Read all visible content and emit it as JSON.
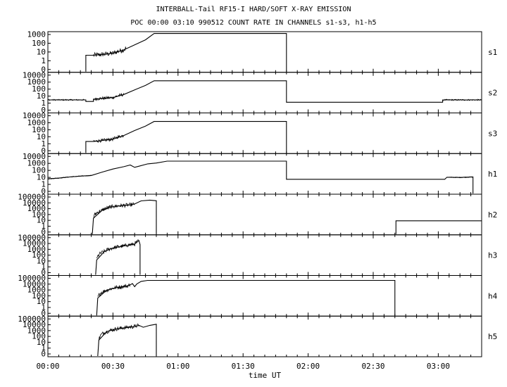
{
  "header": {
    "title": "INTERBALL-Tail RF15-I HARD/SOFT X-RAY EMISSION",
    "subtitle": "POC 00:00 03:10 990512  COUNT RATE IN CHANNELS s1-s3, h1-h5"
  },
  "chart_data": {
    "type": "line",
    "title": "INTERBALL-Tail RF15-I HARD/SOFT X-RAY EMISSION",
    "subtitle": "POC 00:00 03:10 990512  COUNT RATE IN CHANNELS s1-s3, h1-h5",
    "xlabel": "time UT",
    "x_unit": "minutes",
    "xlim": [
      0,
      200
    ],
    "x_ticks": [
      {
        "value": 0,
        "label": "00:00"
      },
      {
        "value": 30,
        "label": "00:30"
      },
      {
        "value": 60,
        "label": "01:00"
      },
      {
        "value": 90,
        "label": "01:30"
      },
      {
        "value": 120,
        "label": "02:00"
      },
      {
        "value": 150,
        "label": "02:30"
      },
      {
        "value": 180,
        "label": "03:00"
      }
    ],
    "y_scale": "log",
    "grid": false,
    "legend": "none",
    "series": [
      {
        "name": "s1",
        "ylim": [
          0.1,
          1000
        ],
        "ytick_labels": [
          "1000",
          "100",
          "10",
          "1",
          "0"
        ],
        "segments": [
          {
            "points": [
              [
                17.5,
                0.1
              ],
              [
                17.5,
                5
              ],
              [
                21,
                5
              ],
              [
                25,
                6
              ],
              [
                30,
                8
              ],
              [
                35,
                18
              ],
              [
                40,
                60
              ],
              [
                45,
                200
              ],
              [
                49,
                900
              ],
              [
                110,
                900
              ],
              [
                110,
                0.1
              ]
            ],
            "noise": [
              [
                21,
                36,
                0.25
              ]
            ]
          }
        ]
      },
      {
        "name": "s2",
        "ylim": [
          0.1,
          10000
        ],
        "ytick_labels": [
          "10000",
          "1000",
          "100",
          "10",
          "1",
          "0"
        ],
        "segments": [
          {
            "points": [
              [
                0,
                4
              ],
              [
                17.5,
                4
              ],
              [
                17.5,
                2.5
              ],
              [
                21,
                2.5
              ],
              [
                21,
                5
              ],
              [
                30,
                8
              ],
              [
                35,
                20
              ],
              [
                40,
                80
              ],
              [
                45,
                300
              ],
              [
                49,
                1200
              ],
              [
                110,
                1200
              ],
              [
                110,
                2
              ],
              [
                182,
                2
              ],
              [
                182,
                4
              ],
              [
                200,
                4
              ]
            ],
            "noise": [
              [
                0,
                17,
                0.08
              ],
              [
                21,
                35,
                0.2
              ],
              [
                182,
                200,
                0.08
              ]
            ]
          }
        ]
      },
      {
        "name": "s3",
        "ylim": [
          0.1,
          10000
        ],
        "ytick_labels": [
          "10000",
          "1000",
          "100",
          "10",
          "1",
          "0"
        ],
        "segments": [
          {
            "points": [
              [
                17.5,
                0.1
              ],
              [
                17.5,
                3
              ],
              [
                21,
                3
              ],
              [
                25,
                4
              ],
              [
                30,
                6
              ],
              [
                35,
                18
              ],
              [
                40,
                80
              ],
              [
                45,
                300
              ],
              [
                49,
                1200
              ],
              [
                110,
                1200
              ],
              [
                110,
                0.1
              ]
            ],
            "noise": [
              [
                21,
                35,
                0.2
              ]
            ]
          }
        ]
      },
      {
        "name": "h1",
        "ylim": [
          0.1,
          10000
        ],
        "ytick_labels": [
          "10000",
          "1000",
          "100",
          "10",
          "1",
          "0"
        ],
        "segments": [
          {
            "points": [
              [
                0,
                8
              ],
              [
                5,
                10
              ],
              [
                10,
                14
              ],
              [
                15,
                18
              ],
              [
                20,
                22
              ],
              [
                25,
                60
              ],
              [
                30,
                150
              ],
              [
                35,
                300
              ],
              [
                38,
                500
              ],
              [
                40,
                250
              ],
              [
                42,
                350
              ],
              [
                46,
                700
              ],
              [
                50,
                900
              ],
              [
                55,
                1600
              ],
              [
                110,
                1600
              ],
              [
                110,
                7
              ],
              [
                183,
                7
              ],
              [
                184,
                13
              ],
              [
                190,
                12
              ],
              [
                196,
                14
              ],
              [
                196,
                0.1
              ]
            ],
            "noise": [
              [
                0,
                20,
                0.05
              ],
              [
                184,
                196,
                0.05
              ]
            ]
          }
        ]
      },
      {
        "name": "h2",
        "ylim": [
          0.1,
          100000
        ],
        "ytick_labels": [
          "100000",
          "10000",
          "1000",
          "100",
          "10",
          "1",
          "0"
        ],
        "segments": [
          {
            "points": [
              [
                20.5,
                0.1
              ],
              [
                21,
                30
              ],
              [
                25,
                500
              ],
              [
                30,
                2000
              ],
              [
                35,
                3000
              ],
              [
                38,
                3500
              ],
              [
                40,
                5000
              ],
              [
                43,
                15000
              ],
              [
                47,
                20000
              ],
              [
                50,
                16000
              ],
              [
                50,
                0.1
              ]
            ],
            "noise": [
              [
                21,
                40,
                0.3
              ]
            ]
          },
          {
            "points": [
              [
                160.5,
                0.1
              ],
              [
                160.5,
                12
              ],
              [
                200,
                12
              ]
            ]
          }
        ]
      },
      {
        "name": "h3",
        "ylim": [
          0.1,
          100000
        ],
        "ytick_labels": [
          "100000",
          "10000",
          "1000",
          "100",
          "10",
          "1",
          "0"
        ],
        "segments": [
          {
            "points": [
              [
                22,
                0.1
              ],
              [
                22.5,
                20
              ],
              [
                26,
                400
              ],
              [
                30,
                1500
              ],
              [
                35,
                3000
              ],
              [
                40,
                6000
              ],
              [
                41,
                12000
              ],
              [
                42,
                20000
              ],
              [
                42.5,
                5000
              ],
              [
                42.5,
                0.1
              ]
            ],
            "noise": [
              [
                22.5,
                42,
                0.3
              ]
            ]
          }
        ]
      },
      {
        "name": "h4",
        "ylim": [
          0.1,
          100000
        ],
        "ytick_labels": [
          "100000",
          "10000",
          "1000",
          "100",
          "10",
          "1",
          "0"
        ],
        "segments": [
          {
            "points": [
              [
                22.5,
                0.1
              ],
              [
                23,
                50
              ],
              [
                27,
                800
              ],
              [
                31,
                2000
              ],
              [
                37,
                4000
              ],
              [
                39,
                9000
              ],
              [
                40,
                3000
              ],
              [
                41,
                8000
              ],
              [
                43,
                20000
              ],
              [
                46,
                28000
              ],
              [
                160,
                28000
              ],
              [
                160,
                0.1
              ]
            ],
            "noise": [
              [
                23,
                38,
                0.3
              ]
            ]
          }
        ]
      },
      {
        "name": "h5",
        "ylim": [
          0.1,
          100000
        ],
        "ytick_labels": [
          "100000",
          "10000",
          "1000",
          "100",
          "10",
          "1",
          "0"
        ],
        "segments": [
          {
            "points": [
              [
                23,
                0.1
              ],
              [
                23.5,
                30
              ],
              [
                27,
                600
              ],
              [
                31,
                1500
              ],
              [
                35,
                2500
              ],
              [
                40,
                4000
              ],
              [
                42,
                6000
              ],
              [
                44,
                3000
              ],
              [
                47,
                6000
              ],
              [
                50,
                9000
              ],
              [
                50,
                0.1
              ]
            ],
            "noise": [
              [
                23.5,
                42,
                0.3
              ]
            ]
          }
        ]
      }
    ]
  }
}
